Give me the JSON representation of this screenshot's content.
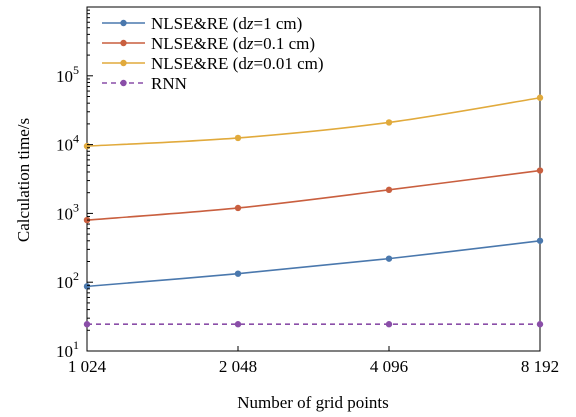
{
  "chart_data": {
    "type": "line",
    "title": "",
    "xlabel": "Number of grid points",
    "ylabel": "Calculation time/s",
    "x": [
      1024,
      2048,
      4096,
      8192
    ],
    "x_tick_labels": [
      "1 024",
      "2 048",
      "4 096",
      "8 192"
    ],
    "x_scale": "log2",
    "xlim": [
      1024,
      8192
    ],
    "y_scale": "log",
    "ylim": [
      10,
      1000000
    ],
    "y_ticks": [
      {
        "value": 10,
        "base": "10",
        "exp": "1"
      },
      {
        "value": 100,
        "base": "10",
        "exp": "2"
      },
      {
        "value": 1000,
        "base": "10",
        "exp": "3"
      },
      {
        "value": 10000,
        "base": "10",
        "exp": "4"
      },
      {
        "value": 100000,
        "base": "10",
        "exp": "5"
      }
    ],
    "grid": false,
    "legend_position": "top-left",
    "series": [
      {
        "name_prefix": "NLSE&RE (d",
        "name_italic": "z",
        "name_suffix": "=1 cm)",
        "values": [
          87,
          133,
          220,
          400
        ],
        "color": "#4a78ad",
        "line_style": "solid"
      },
      {
        "name_prefix": "NLSE&RE (d",
        "name_italic": "z",
        "name_suffix": "=0.1 cm)",
        "values": [
          800,
          1200,
          2200,
          4200
        ],
        "color": "#c95f3f",
        "line_style": "solid"
      },
      {
        "name_prefix": "NLSE&RE (d",
        "name_italic": "z",
        "name_suffix": "=0.01 cm)",
        "values": [
          9500,
          12500,
          21000,
          48000
        ],
        "color": "#e1aa3c",
        "line_style": "solid"
      },
      {
        "name_prefix": "RNN",
        "name_italic": "",
        "name_suffix": "",
        "values": [
          24.5,
          24.5,
          24.5,
          24.5
        ],
        "color": "#8a4ea8",
        "line_style": "dashed"
      }
    ]
  }
}
